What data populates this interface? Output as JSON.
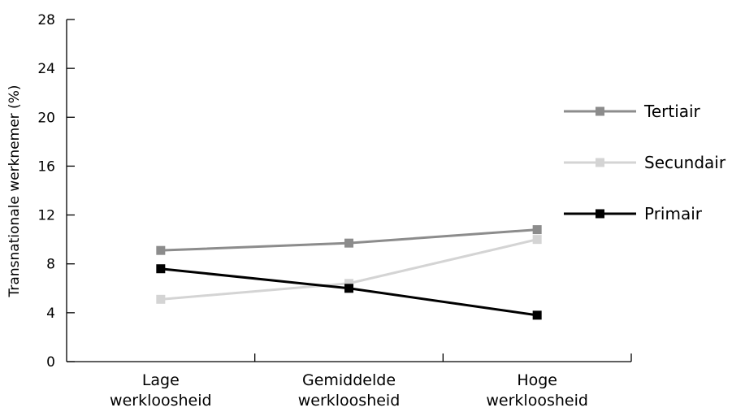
{
  "chart_data": {
    "type": "line",
    "xlabel": "",
    "ylabel": "Transnationale werknemer (%)",
    "ylim": [
      0,
      28
    ],
    "yticks": [
      "0",
      "4",
      "8",
      "12",
      "16",
      "20",
      "24",
      "28"
    ],
    "categories": [
      [
        "Lage",
        "werkloosheid"
      ],
      [
        "Gemiddelde",
        "werkloosheid"
      ],
      [
        "Hoge",
        "werkloosheid"
      ]
    ],
    "series": [
      {
        "name": "Tertiair",
        "color": "#8c8c8c",
        "values": [
          9.1,
          9.7,
          10.8
        ]
      },
      {
        "name": "Secundair",
        "color": "#d4d4d4",
        "values": [
          5.1,
          6.4,
          10.0
        ]
      },
      {
        "name": "Primair",
        "color": "#000000",
        "values": [
          7.6,
          6.0,
          3.8
        ]
      }
    ],
    "grid": false,
    "legend_position": "right"
  }
}
